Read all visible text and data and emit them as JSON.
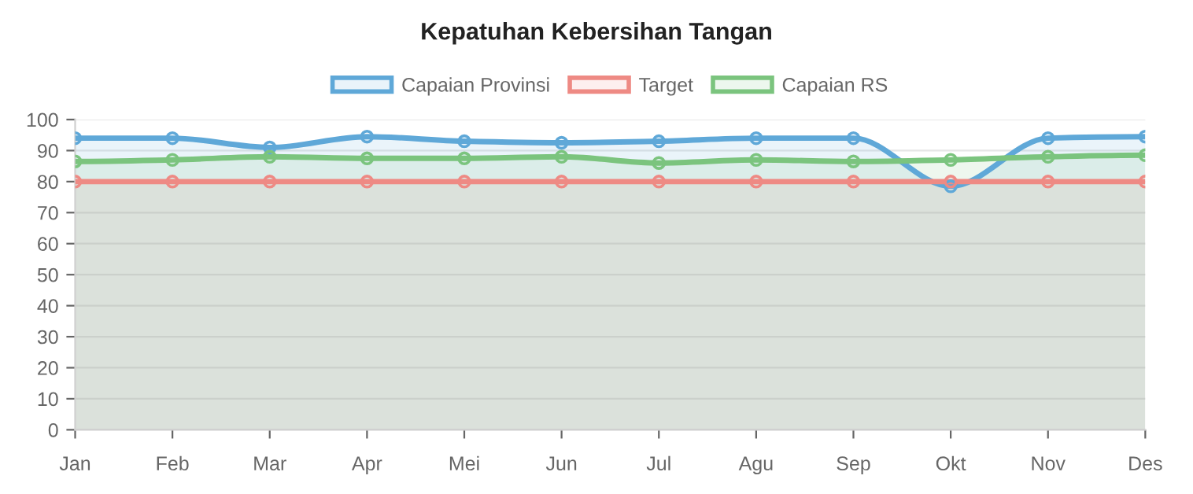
{
  "chart_data": {
    "type": "area",
    "title": "Kepatuhan Kebersihan Tangan",
    "categories": [
      "Jan",
      "Feb",
      "Mar",
      "Apr",
      "Mei",
      "Jun",
      "Jul",
      "Agu",
      "Sep",
      "Okt",
      "Nov",
      "Des"
    ],
    "series": [
      {
        "name": "Capaian Provinsi",
        "color": "#5fa8d8",
        "values": [
          94,
          94,
          91,
          94.5,
          93,
          92.5,
          93,
          94,
          94,
          78.5,
          94,
          94.5
        ]
      },
      {
        "name": "Target",
        "color": "#ee8a84",
        "values": [
          80,
          80,
          80,
          80,
          80,
          80,
          80,
          80,
          80,
          80,
          80,
          80
        ]
      },
      {
        "name": "Capaian RS",
        "color": "#7bc47e",
        "values": [
          86.5,
          87,
          88,
          87.5,
          87.5,
          88,
          86,
          87,
          86.5,
          87,
          88,
          88.5
        ]
      }
    ],
    "ylim": [
      0,
      100
    ],
    "yticks": [
      0,
      10,
      20,
      30,
      40,
      50,
      60,
      70,
      80,
      90,
      100
    ],
    "grid": "y",
    "legend": "top",
    "marker": "circle",
    "line_style": "solid"
  }
}
